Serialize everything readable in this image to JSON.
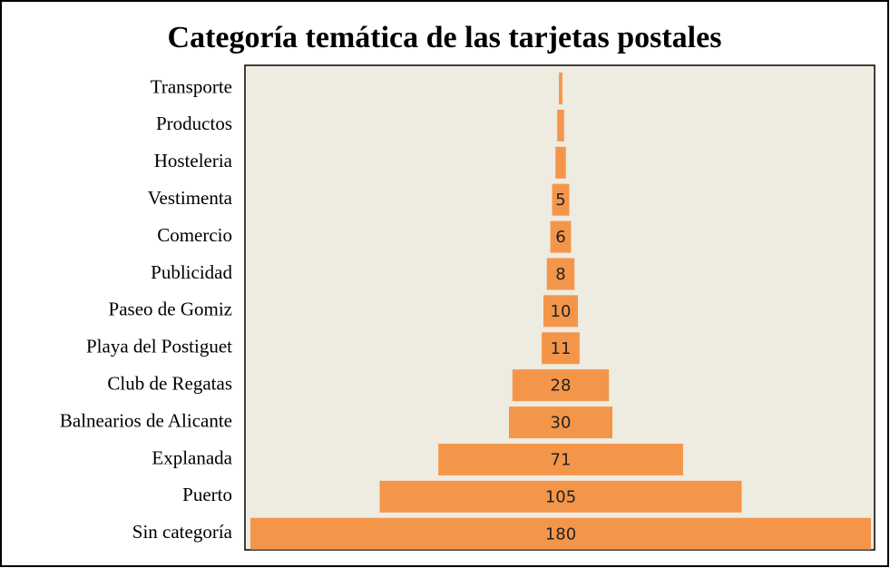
{
  "chart_data": {
    "type": "funnel",
    "title": "Categoría temática de las tarjetas postales",
    "categories": [
      "Transporte",
      "Productos",
      "Hosteleria",
      "Vestimenta",
      "Comercio",
      "Publicidad",
      "Paseo de Gomiz",
      "Playa del Postiguet",
      "Club de Regatas",
      "Balnearios de Alicante",
      "Explanada",
      "Puerto",
      "Sin categoría"
    ],
    "values": [
      1,
      2,
      3,
      5,
      6,
      8,
      10,
      11,
      28,
      30,
      71,
      105,
      180
    ],
    "color": "#f4964a",
    "background": "#eeebe0"
  }
}
